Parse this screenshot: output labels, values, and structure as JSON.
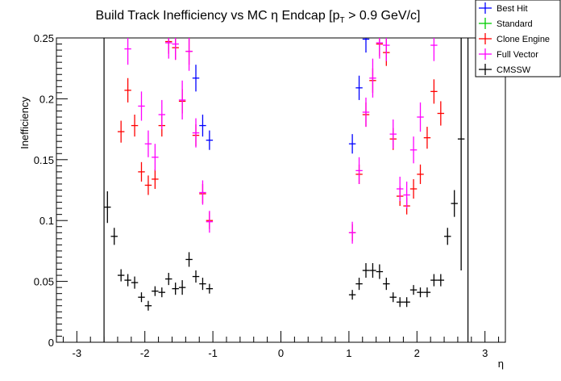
{
  "chart_data": {
    "type": "scatter",
    "title_main": "Build Track Inefficiency vs MC ",
    "title_eta": "η",
    "title_mid": " Endcap [p",
    "title_sub": "T",
    "title_end": " > 0.9 GeV/c]",
    "xlabel": "η",
    "ylabel": "Inefficiency",
    "xlim": [
      -3.3,
      3.3
    ],
    "ylim": [
      0,
      0.25
    ],
    "xticks": [
      "-3",
      "-2",
      "-1",
      "0",
      "1",
      "2",
      "3"
    ],
    "xtick_values": [
      -3,
      -2,
      -1,
      0,
      1,
      2,
      3
    ],
    "yticks": [
      "0",
      "0.05",
      "0.1",
      "0.15",
      "0.2",
      "0.25"
    ],
    "ytick_values": [
      0,
      0.05,
      0.1,
      0.15,
      0.2,
      0.25
    ],
    "legend_position": "top-right",
    "series": [
      {
        "name": "Best Hit",
        "color": "#0000ff",
        "points": [
          {
            "x": -1.25,
            "y": 0.217,
            "e": 0.011
          },
          {
            "x": -1.15,
            "y": 0.178,
            "e": 0.009
          },
          {
            "x": -1.05,
            "y": 0.166,
            "e": 0.008
          },
          {
            "x": 1.05,
            "y": 0.163,
            "e": 0.008
          },
          {
            "x": 1.15,
            "y": 0.209,
            "e": 0.01
          },
          {
            "x": 1.25,
            "y": 0.249,
            "e": 0.011
          }
        ]
      },
      {
        "name": "Standard",
        "color": "#00cc00",
        "points": []
      },
      {
        "name": "Clone Engine",
        "color": "#ff0000",
        "points": [
          {
            "x": -2.35,
            "y": 0.173,
            "e": 0.009
          },
          {
            "x": -2.25,
            "y": 0.207,
            "e": 0.01
          },
          {
            "x": -2.15,
            "y": 0.178,
            "e": 0.009
          },
          {
            "x": -2.05,
            "y": 0.14,
            "e": 0.008
          },
          {
            "x": -1.95,
            "y": 0.129,
            "e": 0.008
          },
          {
            "x": -1.85,
            "y": 0.134,
            "e": 0.008
          },
          {
            "x": -1.75,
            "y": 0.178,
            "e": 0.009
          },
          {
            "x": -1.65,
            "y": 0.247,
            "e": 0.01
          },
          {
            "x": -1.55,
            "y": 0.242,
            "e": 0.01
          },
          {
            "x": -1.45,
            "y": 0.198,
            "e": 0.01
          },
          {
            "x": -1.35,
            "y": 0.239,
            "e": 0.011
          },
          {
            "x": -1.25,
            "y": 0.17,
            "e": 0.009
          },
          {
            "x": -1.15,
            "y": 0.122,
            "e": 0.008
          },
          {
            "x": -1.05,
            "y": 0.1,
            "e": 0.007
          },
          {
            "x": 1.05,
            "y": 0.09,
            "e": 0.007
          },
          {
            "x": 1.15,
            "y": 0.138,
            "e": 0.008
          },
          {
            "x": 1.25,
            "y": 0.187,
            "e": 0.01
          },
          {
            "x": 1.35,
            "y": 0.215,
            "e": 0.01
          },
          {
            "x": 1.45,
            "y": 0.245,
            "e": 0.01
          },
          {
            "x": 1.55,
            "y": 0.238,
            "e": 0.011
          },
          {
            "x": 1.65,
            "y": 0.167,
            "e": 0.009
          },
          {
            "x": 1.75,
            "y": 0.12,
            "e": 0.008
          },
          {
            "x": 1.85,
            "y": 0.112,
            "e": 0.007
          },
          {
            "x": 1.95,
            "y": 0.126,
            "e": 0.008
          },
          {
            "x": 2.05,
            "y": 0.138,
            "e": 0.008
          },
          {
            "x": 2.15,
            "y": 0.168,
            "e": 0.009
          },
          {
            "x": 2.25,
            "y": 0.206,
            "e": 0.01
          },
          {
            "x": 2.35,
            "y": 0.188,
            "e": 0.01
          }
        ]
      },
      {
        "name": "Full Vector",
        "color": "#ff00ff",
        "points": [
          {
            "x": -2.25,
            "y": 0.241,
            "e": 0.013
          },
          {
            "x": -2.05,
            "y": 0.194,
            "e": 0.012
          },
          {
            "x": -1.95,
            "y": 0.163,
            "e": 0.011
          },
          {
            "x": -1.85,
            "y": 0.152,
            "e": 0.011
          },
          {
            "x": -1.75,
            "y": 0.187,
            "e": 0.012
          },
          {
            "x": -1.65,
            "y": 0.246,
            "e": 0.013
          },
          {
            "x": -1.55,
            "y": 0.245,
            "e": 0.013
          },
          {
            "x": -1.45,
            "y": 0.199,
            "e": 0.016
          },
          {
            "x": -1.35,
            "y": 0.239,
            "e": 0.016
          },
          {
            "x": -1.25,
            "y": 0.172,
            "e": 0.012
          },
          {
            "x": -1.15,
            "y": 0.123,
            "e": 0.01
          },
          {
            "x": -1.05,
            "y": 0.099,
            "e": 0.009
          },
          {
            "x": 1.05,
            "y": 0.09,
            "e": 0.009
          },
          {
            "x": 1.15,
            "y": 0.141,
            "e": 0.011
          },
          {
            "x": 1.25,
            "y": 0.189,
            "e": 0.012
          },
          {
            "x": 1.35,
            "y": 0.217,
            "e": 0.016
          },
          {
            "x": 1.45,
            "y": 0.246,
            "e": 0.013
          },
          {
            "x": 1.55,
            "y": 0.244,
            "e": 0.013
          },
          {
            "x": 1.65,
            "y": 0.171,
            "e": 0.012
          },
          {
            "x": 1.75,
            "y": 0.126,
            "e": 0.01
          },
          {
            "x": 1.85,
            "y": 0.121,
            "e": 0.011
          },
          {
            "x": 1.95,
            "y": 0.158,
            "e": 0.011
          },
          {
            "x": 2.05,
            "y": 0.185,
            "e": 0.012
          },
          {
            "x": 2.25,
            "y": 0.244,
            "e": 0.013
          }
        ]
      },
      {
        "name": "CMSSW",
        "color": "#000000",
        "points": [
          {
            "x": -2.55,
            "y": 0.111,
            "e": 0.013
          },
          {
            "x": -2.45,
            "y": 0.087,
            "e": 0.007
          },
          {
            "x": -2.35,
            "y": 0.055,
            "e": 0.005
          },
          {
            "x": -2.25,
            "y": 0.051,
            "e": 0.005
          },
          {
            "x": -2.15,
            "y": 0.049,
            "e": 0.005
          },
          {
            "x": -2.05,
            "y": 0.037,
            "e": 0.004
          },
          {
            "x": -1.95,
            "y": 0.03,
            "e": 0.004
          },
          {
            "x": -1.85,
            "y": 0.042,
            "e": 0.004
          },
          {
            "x": -1.75,
            "y": 0.041,
            "e": 0.004
          },
          {
            "x": -1.65,
            "y": 0.052,
            "e": 0.005
          },
          {
            "x": -1.55,
            "y": 0.044,
            "e": 0.005
          },
          {
            "x": -1.45,
            "y": 0.045,
            "e": 0.006
          },
          {
            "x": -1.35,
            "y": 0.068,
            "e": 0.006
          },
          {
            "x": -1.25,
            "y": 0.054,
            "e": 0.005
          },
          {
            "x": -1.15,
            "y": 0.048,
            "e": 0.005
          },
          {
            "x": -1.05,
            "y": 0.044,
            "e": 0.004
          },
          {
            "x": 1.05,
            "y": 0.039,
            "e": 0.004
          },
          {
            "x": 1.15,
            "y": 0.048,
            "e": 0.005
          },
          {
            "x": 1.25,
            "y": 0.059,
            "e": 0.006
          },
          {
            "x": 1.35,
            "y": 0.059,
            "e": 0.006
          },
          {
            "x": 1.45,
            "y": 0.058,
            "e": 0.006
          },
          {
            "x": 1.55,
            "y": 0.048,
            "e": 0.005
          },
          {
            "x": 1.65,
            "y": 0.037,
            "e": 0.004
          },
          {
            "x": 1.75,
            "y": 0.033,
            "e": 0.004
          },
          {
            "x": 1.85,
            "y": 0.033,
            "e": 0.004
          },
          {
            "x": 1.95,
            "y": 0.043,
            "e": 0.004
          },
          {
            "x": 2.05,
            "y": 0.041,
            "e": 0.004
          },
          {
            "x": 2.15,
            "y": 0.041,
            "e": 0.004
          },
          {
            "x": 2.25,
            "y": 0.051,
            "e": 0.005
          },
          {
            "x": 2.35,
            "y": 0.051,
            "e": 0.005
          },
          {
            "x": 2.45,
            "y": 0.087,
            "e": 0.007
          },
          {
            "x": 2.55,
            "y": 0.114,
            "e": 0.011
          },
          {
            "x": 2.65,
            "y": 0.167,
            "e": 0.108
          }
        ]
      }
    ],
    "vertical_lines": [
      {
        "x": -2.6,
        "y_top": 0.25,
        "y_bottom": 0
      },
      {
        "x": 2.75,
        "y_top": 0.25,
        "y_bottom": 0
      }
    ]
  }
}
